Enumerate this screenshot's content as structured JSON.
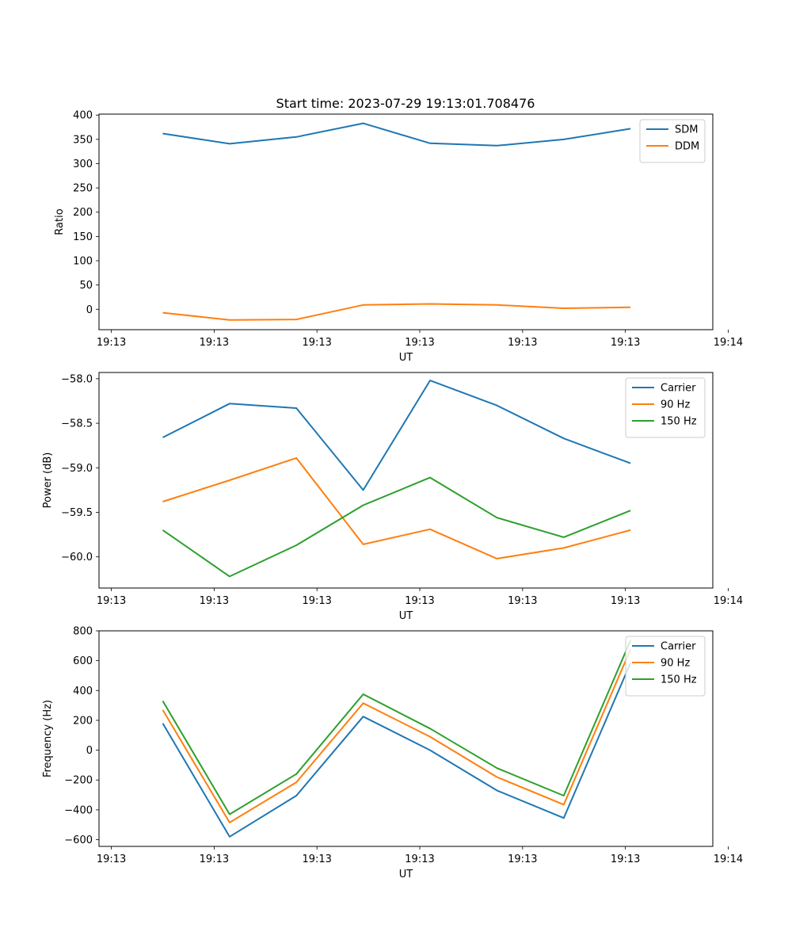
{
  "figure": {
    "title": "Start time: 2023-07-29 19:13:01.708476"
  },
  "chart_data": [
    {
      "type": "line",
      "xlabel": "UT",
      "ylabel": "Ratio",
      "x_tick_labels": [
        "19:13",
        "19:13",
        "19:13",
        "19:13",
        "19:13",
        "19:13",
        "19:14"
      ],
      "x_tick_positions": [
        0,
        1,
        2,
        3,
        4,
        5,
        6
      ],
      "xlim": [
        -0.12,
        5.85
      ],
      "x": [
        0.5,
        1.15,
        1.8,
        2.45,
        3.1,
        3.75,
        4.4,
        5.05
      ],
      "ylim": [
        -42,
        402
      ],
      "y_ticks": [
        0,
        50,
        100,
        150,
        200,
        250,
        300,
        350,
        400
      ],
      "legend": "top-right",
      "series": [
        {
          "name": "SDM",
          "color": "#1f77b4",
          "values": [
            362,
            341,
            355,
            383,
            342,
            337,
            350,
            372
          ]
        },
        {
          "name": "DDM",
          "color": "#ff7f0e",
          "values": [
            -7,
            -22,
            -21,
            9,
            11,
            9,
            2,
            4
          ]
        }
      ]
    },
    {
      "type": "line",
      "xlabel": "UT",
      "ylabel": "Power (dB)",
      "x_tick_labels": [
        "19:13",
        "19:13",
        "19:13",
        "19:13",
        "19:13",
        "19:13",
        "19:14"
      ],
      "x_tick_positions": [
        0,
        1,
        2,
        3,
        4,
        5,
        6
      ],
      "xlim": [
        -0.12,
        5.85
      ],
      "x": [
        0.5,
        1.15,
        1.8,
        2.45,
        3.1,
        3.75,
        4.4,
        5.05
      ],
      "ylim": [
        -60.35,
        -57.93
      ],
      "y_ticks": [
        -60.0,
        -59.5,
        -59.0,
        -58.5,
        -58.0
      ],
      "y_tick_labels": [
        "−60.0",
        "−59.5",
        "−59.0",
        "−58.5",
        "−58.0"
      ],
      "legend": "top-right",
      "series": [
        {
          "name": "Carrier",
          "color": "#1f77b4",
          "values": [
            -58.66,
            -58.28,
            -58.33,
            -59.25,
            -58.02,
            -58.3,
            -58.67,
            -58.95
          ]
        },
        {
          "name": "90 Hz",
          "color": "#ff7f0e",
          "values": [
            -59.38,
            -59.14,
            -58.89,
            -59.86,
            -59.69,
            -60.02,
            -59.9,
            -59.7
          ]
        },
        {
          "name": "150 Hz",
          "color": "#2ca02c",
          "values": [
            -59.7,
            -60.22,
            -59.87,
            -59.42,
            -59.11,
            -59.56,
            -59.78,
            -59.48
          ]
        }
      ]
    },
    {
      "type": "line",
      "xlabel": "UT",
      "ylabel": "Frequency (Hz)",
      "x_tick_labels": [
        "19:13",
        "19:13",
        "19:13",
        "19:13",
        "19:13",
        "19:13",
        "19:14"
      ],
      "x_tick_positions": [
        0,
        1,
        2,
        3,
        4,
        5,
        6
      ],
      "xlim": [
        -0.12,
        5.85
      ],
      "x": [
        0.5,
        1.15,
        1.8,
        2.45,
        3.1,
        3.75,
        4.4,
        5.05
      ],
      "ylim": [
        -645,
        800
      ],
      "y_ticks": [
        -600,
        -400,
        -200,
        0,
        200,
        400,
        600,
        800
      ],
      "y_tick_labels": [
        "−600",
        "−400",
        "−200",
        "0",
        "200",
        "400",
        "600",
        "800"
      ],
      "legend": "top-right",
      "series": [
        {
          "name": "Carrier",
          "color": "#1f77b4",
          "values": [
            180,
            -580,
            -305,
            225,
            0,
            -270,
            -455,
            585
          ]
        },
        {
          "name": "90 Hz",
          "color": "#ff7f0e",
          "values": [
            270,
            -485,
            -215,
            315,
            90,
            -180,
            -365,
            675
          ]
        },
        {
          "name": "150 Hz",
          "color": "#2ca02c",
          "values": [
            330,
            -430,
            -160,
            375,
            145,
            -120,
            -305,
            735
          ]
        }
      ]
    }
  ]
}
